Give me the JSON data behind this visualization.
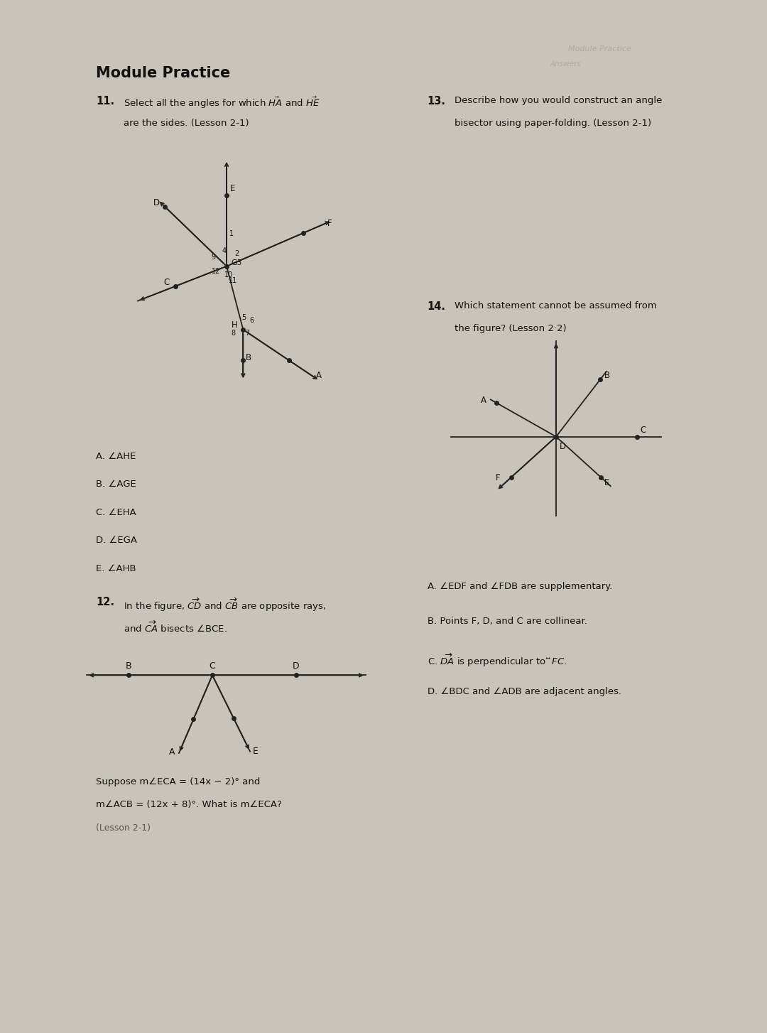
{
  "bg_color": "#c8c4bc",
  "page_bg": "#e8e5de",
  "title": "Module Practice",
  "q11_header": "11.",
  "q11_body": "Select all the angles for which $\\vec{HA}$ and $\\vec{HE}$",
  "q11_body2": "are the sides. (Lesson 2-1)",
  "q13_header": "13.",
  "q13_body": "Describe how you would construct an angle",
  "q13_body2": "bisector using paper-folding. (Lesson 2-1)",
  "q14_header": "14.",
  "q14_body": "Which statement cannot be assumed from",
  "q14_body2": "the figure? (Lesson 2·2)",
  "q14_options": [
    "A. ∠EDF and ∠FDB are supplementary.",
    "B. Points F, D, and C are collinear.",
    "C. $\\overrightarrow{DA}$ is perpendicular to $\\overleftrightarrow{FC}$.",
    "D. ∠BDC and ∠ADB are adjacent angles."
  ],
  "q11_options": [
    "A. ∠AHE",
    "B. ∠AGE",
    "C. ∠EHA",
    "D. ∠EGA",
    "E. ∠AHB"
  ],
  "q12_header": "12.",
  "q12_body": "In the figure, $\\overrightarrow{CD}$ and $\\overrightarrow{CB}$ are opposite rays,",
  "q12_body2": "and $\\overrightarrow{CA}$ bisects ∠BCE.",
  "q12_sub1": "Suppose m∠ECA = (14x − 2)° and",
  "q12_sub2": "m∠ACB = (12x + 8)°. What is m∠ECA?",
  "q12_sub3": "(Lesson 2-1)",
  "mirror_text1": "Module Practice",
  "mirror_text2": "Answers",
  "text_color": "#111111",
  "gray_color": "#555555",
  "line_color": "#222222"
}
